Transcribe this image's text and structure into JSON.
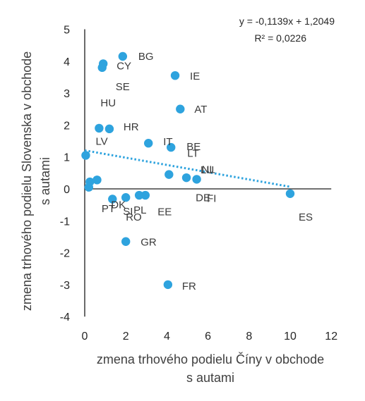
{
  "chart_data": {
    "type": "scatter",
    "xlabel_lines": [
      "zmena trhového podielu Číny v obchode",
      "s autami"
    ],
    "ylabel_lines": [
      "zmena trhového podielu Slovenska v obchode",
      "s autami"
    ],
    "xlim": [
      0,
      12
    ],
    "ylim": [
      -4,
      5
    ],
    "x_ticks": [
      0,
      2,
      4,
      6,
      8,
      10,
      12
    ],
    "y_ticks": [
      5,
      4,
      3,
      2,
      1,
      0,
      -1,
      -2,
      -3,
      -4
    ],
    "marker_color": "#2ea3de",
    "trendline": {
      "equation": "y = -0,1139x + 1,2049",
      "r2_label": "R² = 0,0226",
      "slope": -0.1139,
      "intercept": 1.2049,
      "x_range": [
        0,
        10
      ],
      "style": "dotted",
      "color": "#2ea3de"
    },
    "points": [
      {
        "label": "BG",
        "x": 1.85,
        "y": 4.15
      },
      {
        "label": "CY",
        "x": 0.9,
        "y": 3.92
      },
      {
        "label": "SE",
        "x": 0.85,
        "y": 3.8
      },
      {
        "label": "IE",
        "x": 4.4,
        "y": 3.55
      },
      {
        "label": "AT",
        "x": 4.65,
        "y": 2.5
      },
      {
        "label": "HU",
        "x": 0.7,
        "y": 1.9
      },
      {
        "label": "HR",
        "x": 1.2,
        "y": 1.88
      },
      {
        "label": "IT",
        "x": 3.1,
        "y": 1.43
      },
      {
        "label": "BE",
        "x": 4.2,
        "y": 1.3
      },
      {
        "label": "LV",
        "x": 0.05,
        "y": 1.05
      },
      {
        "label": "LT",
        "x": 4.1,
        "y": 0.45
      },
      {
        "label": "LU",
        "x": 4.95,
        "y": 0.35
      },
      {
        "label": "NL",
        "x": 5.45,
        "y": 0.3
      },
      {
        "label": "",
        "x": 0.6,
        "y": 0.28
      },
      {
        "label": "",
        "x": 0.25,
        "y": 0.22
      },
      {
        "label": "",
        "x": 0.2,
        "y": 0.05
      },
      {
        "label": "PL",
        "x": 2.65,
        "y": -0.2
      },
      {
        "label": "",
        "x": 2.95,
        "y": -0.2
      },
      {
        "label": "SI",
        "x": 2.0,
        "y": -0.27
      },
      {
        "label": "DK",
        "x": 1.35,
        "y": -0.32
      },
      {
        "label": "ES",
        "x": 10.0,
        "y": -0.15
      },
      {
        "label": "GR",
        "x": 2.0,
        "y": -1.65
      },
      {
        "label": "FR",
        "x": 4.05,
        "y": -3.0
      }
    ],
    "free_labels": [
      {
        "text": "DE",
        "x": 5.4,
        "y": -0.28
      },
      {
        "text": "FI",
        "x": 5.95,
        "y": -0.3
      },
      {
        "text": "EE",
        "x": 3.55,
        "y": -0.72
      },
      {
        "text": "PT",
        "x": 0.82,
        "y": -0.62
      },
      {
        "text": "RO",
        "x": 2.0,
        "y": -0.88
      }
    ]
  }
}
